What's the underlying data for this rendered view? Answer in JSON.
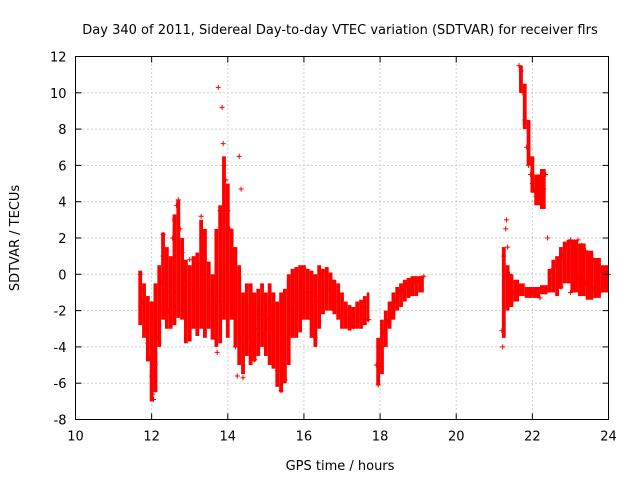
{
  "chart_data": {
    "type": "scatter",
    "title": "Day 340 of 2011, Sidereal Day-to-day VTEC variation (SDTVAR) for receiver flrs",
    "xlabel": "GPS time / hours",
    "ylabel": "SDTVAR / TECUs",
    "xlim": [
      10,
      24
    ],
    "ylim": [
      -8,
      12
    ],
    "xticks": [
      10,
      12,
      14,
      16,
      18,
      20,
      22,
      24
    ],
    "yticks": [
      -8,
      -6,
      -4,
      -2,
      0,
      2,
      4,
      6,
      8,
      10,
      12
    ],
    "grid": true,
    "marker": "+",
    "color": "#ff0000",
    "series": [
      {
        "name": "SDTVAR",
        "points": [
          [
            11.7,
            0.0
          ],
          [
            11.72,
            -0.8
          ],
          [
            11.75,
            -1.5
          ],
          [
            11.8,
            -2.6
          ],
          [
            11.85,
            -3.0
          ],
          [
            11.9,
            -3.8
          ],
          [
            11.95,
            -4.6
          ],
          [
            12.0,
            -5.6
          ],
          [
            12.02,
            -6.6
          ],
          [
            12.05,
            -6.9
          ],
          [
            12.08,
            -6.2
          ],
          [
            12.1,
            -5.0
          ],
          [
            12.15,
            -3.5
          ],
          [
            12.2,
            -2.2
          ],
          [
            12.25,
            -0.5
          ],
          [
            12.3,
            1.0
          ],
          [
            12.3,
            2.2
          ],
          [
            12.35,
            0.5
          ],
          [
            12.4,
            -1.0
          ],
          [
            12.45,
            -2.0
          ],
          [
            12.5,
            0.8
          ],
          [
            12.55,
            2.0
          ],
          [
            12.6,
            3.0
          ],
          [
            12.65,
            3.8
          ],
          [
            12.7,
            4.1
          ],
          [
            12.75,
            2.5
          ],
          [
            12.8,
            1.2
          ],
          [
            12.9,
            0.5
          ],
          [
            13.0,
            0.8
          ],
          [
            13.1,
            -0.5
          ],
          [
            13.2,
            0.6
          ],
          [
            13.3,
            3.2
          ],
          [
            13.35,
            2.2
          ],
          [
            13.4,
            0.0
          ],
          [
            13.5,
            -1.2
          ],
          [
            13.6,
            -2.8
          ],
          [
            13.7,
            -1.5
          ],
          [
            13.72,
            -4.3
          ],
          [
            13.75,
            10.3
          ],
          [
            13.8,
            3.5
          ],
          [
            13.85,
            9.2
          ],
          [
            13.88,
            7.2
          ],
          [
            13.9,
            6.0
          ],
          [
            13.95,
            5.2
          ],
          [
            14.0,
            3.5
          ],
          [
            14.05,
            2.5
          ],
          [
            14.1,
            1.0
          ],
          [
            14.15,
            -2.0
          ],
          [
            14.2,
            -4.0
          ],
          [
            14.25,
            -5.6
          ],
          [
            14.3,
            6.5
          ],
          [
            14.35,
            4.7
          ],
          [
            14.4,
            -5.7
          ],
          [
            14.5,
            -3.5
          ],
          [
            14.6,
            -4.2
          ],
          [
            14.7,
            -4.7
          ],
          [
            14.8,
            -3.0
          ],
          [
            14.9,
            -2.2
          ],
          [
            15.0,
            -2.5
          ],
          [
            15.1,
            -3.0
          ],
          [
            15.2,
            -3.5
          ],
          [
            15.3,
            -5.3
          ],
          [
            15.4,
            -6.4
          ],
          [
            15.5,
            -5.8
          ],
          [
            15.6,
            -3.5
          ],
          [
            15.7,
            -2.0
          ],
          [
            15.8,
            -0.5
          ],
          [
            15.9,
            0.2
          ],
          [
            16.0,
            0.3
          ],
          [
            16.1,
            -1.0
          ],
          [
            16.2,
            -2.5
          ],
          [
            16.3,
            -3.5
          ],
          [
            16.4,
            -1.5
          ],
          [
            16.5,
            0.0
          ],
          [
            16.6,
            -0.5
          ],
          [
            16.7,
            -0.8
          ],
          [
            16.8,
            -1.5
          ],
          [
            16.9,
            -1.2
          ],
          [
            17.0,
            -2.4
          ],
          [
            17.1,
            -2.8
          ],
          [
            17.2,
            -2.5
          ],
          [
            17.3,
            -2.9
          ],
          [
            17.4,
            -2.6
          ],
          [
            17.5,
            -2.5
          ],
          [
            17.6,
            -1.8
          ],
          [
            17.7,
            -2.5
          ],
          [
            17.9,
            -5.0
          ],
          [
            17.95,
            -6.1
          ],
          [
            18.0,
            -5.0
          ],
          [
            18.05,
            -4.0
          ],
          [
            18.1,
            -3.2
          ],
          [
            18.2,
            -2.6
          ],
          [
            18.3,
            -1.8
          ],
          [
            18.4,
            -1.5
          ],
          [
            18.5,
            -1.0
          ],
          [
            18.6,
            -0.9
          ],
          [
            18.7,
            -0.6
          ],
          [
            18.8,
            -0.5
          ],
          [
            18.9,
            -0.4
          ],
          [
            19.0,
            -0.3
          ],
          [
            19.1,
            -0.2
          ],
          [
            19.15,
            -0.1
          ],
          [
            21.2,
            -3.1
          ],
          [
            21.22,
            -4.0
          ],
          [
            21.25,
            1.0
          ],
          [
            21.3,
            2.5
          ],
          [
            21.32,
            3.0
          ],
          [
            21.35,
            1.5
          ],
          [
            21.4,
            0.0
          ],
          [
            21.5,
            -1.0
          ],
          [
            21.6,
            -0.8
          ],
          [
            21.65,
            11.5
          ],
          [
            21.7,
            11.2
          ],
          [
            21.75,
            10.0
          ],
          [
            21.8,
            8.5
          ],
          [
            21.85,
            7.0
          ],
          [
            21.9,
            6.0
          ],
          [
            21.95,
            5.5
          ],
          [
            22.0,
            5.0
          ],
          [
            22.05,
            4.6
          ],
          [
            22.1,
            4.3
          ],
          [
            22.15,
            4.2
          ],
          [
            22.2,
            4.3
          ],
          [
            22.3,
            4.7
          ],
          [
            22.35,
            5.5
          ],
          [
            22.4,
            2.0
          ],
          [
            22.45,
            -0.8
          ],
          [
            22.5,
            0.2
          ],
          [
            22.6,
            0.5
          ],
          [
            22.7,
            -0.5
          ],
          [
            22.75,
            -0.7
          ],
          [
            22.8,
            1.0
          ],
          [
            22.9,
            1.5
          ],
          [
            23.0,
            1.9
          ],
          [
            23.1,
            1.8
          ],
          [
            23.2,
            1.9
          ],
          [
            23.3,
            1.6
          ],
          [
            23.4,
            1.3
          ],
          [
            23.5,
            1.0
          ],
          [
            23.6,
            0.8
          ],
          [
            23.7,
            0.4
          ],
          [
            23.8,
            0.2
          ],
          [
            23.9,
            -0.5
          ],
          [
            24.0,
            0.0
          ],
          [
            23.0,
            -1.0
          ],
          [
            23.2,
            -0.2
          ],
          [
            23.4,
            -0.5
          ],
          [
            23.6,
            -0.8
          ],
          [
            23.8,
            -0.9
          ],
          [
            23.9,
            -0.6
          ],
          [
            22.0,
            -1.0
          ],
          [
            22.2,
            -1.3
          ]
        ],
        "bands": [
          [
            11.65,
            11.75,
            -2.8,
            0.2
          ],
          [
            11.75,
            11.85,
            -3.5,
            -0.5
          ],
          [
            11.85,
            11.95,
            -4.8,
            -1.2
          ],
          [
            11.95,
            12.05,
            -7.0,
            -1.5
          ],
          [
            12.05,
            12.15,
            -6.5,
            -0.5
          ],
          [
            12.15,
            12.25,
            -4.0,
            0.5
          ],
          [
            12.25,
            12.35,
            -2.5,
            2.3
          ],
          [
            12.35,
            12.45,
            -3.0,
            1.5
          ],
          [
            12.45,
            12.55,
            -3.0,
            1.0
          ],
          [
            12.55,
            12.65,
            -2.8,
            3.3
          ],
          [
            12.65,
            12.75,
            -2.4,
            4.1
          ],
          [
            12.75,
            12.85,
            -2.5,
            2.0
          ],
          [
            12.85,
            12.95,
            -3.8,
            0.8
          ],
          [
            12.95,
            13.05,
            -3.7,
            0.5
          ],
          [
            13.05,
            13.15,
            -3.0,
            1.0
          ],
          [
            13.15,
            13.25,
            -3.4,
            1.2
          ],
          [
            13.25,
            13.35,
            -3.0,
            3.0
          ],
          [
            13.35,
            13.45,
            -3.5,
            2.5
          ],
          [
            13.45,
            13.55,
            -3.0,
            0.7
          ],
          [
            13.55,
            13.65,
            -3.6,
            0.0
          ],
          [
            13.65,
            13.75,
            -4.0,
            2.5
          ],
          [
            13.75,
            13.85,
            -3.8,
            3.8
          ],
          [
            13.85,
            13.95,
            -2.5,
            6.5
          ],
          [
            13.95,
            14.05,
            -3.5,
            5.0
          ],
          [
            14.05,
            14.15,
            -2.5,
            2.5
          ],
          [
            14.15,
            14.25,
            -4.0,
            1.5
          ],
          [
            14.25,
            14.35,
            -5.0,
            0.5
          ],
          [
            14.35,
            14.45,
            -5.5,
            -1.0
          ],
          [
            14.45,
            14.55,
            -4.5,
            -0.5
          ],
          [
            14.55,
            14.65,
            -5.0,
            -0.5
          ],
          [
            14.65,
            14.75,
            -4.8,
            -1.0
          ],
          [
            14.75,
            14.85,
            -4.5,
            -0.8
          ],
          [
            14.85,
            14.95,
            -4.0,
            -0.5
          ],
          [
            14.95,
            15.05,
            -4.5,
            -1.0
          ],
          [
            15.05,
            15.15,
            -5.0,
            -0.5
          ],
          [
            15.15,
            15.25,
            -5.2,
            -1.0
          ],
          [
            15.25,
            15.35,
            -6.2,
            -1.5
          ],
          [
            15.35,
            15.45,
            -6.5,
            -1.0
          ],
          [
            15.45,
            15.55,
            -6.0,
            -0.8
          ],
          [
            15.55,
            15.65,
            -5.0,
            0.0
          ],
          [
            15.65,
            15.75,
            -3.5,
            0.3
          ],
          [
            15.75,
            15.85,
            -3.5,
            0.4
          ],
          [
            15.85,
            15.95,
            -3.2,
            0.5
          ],
          [
            15.95,
            16.05,
            -2.5,
            0.5
          ],
          [
            16.05,
            16.15,
            -2.5,
            0.3
          ],
          [
            16.15,
            16.25,
            -3.5,
            0.2
          ],
          [
            16.25,
            16.35,
            -4.0,
            0.0
          ],
          [
            16.35,
            16.45,
            -3.0,
            0.5
          ],
          [
            16.45,
            16.55,
            -2.2,
            0.3
          ],
          [
            16.55,
            16.65,
            -2.0,
            0.4
          ],
          [
            16.65,
            16.75,
            -2.0,
            0.1
          ],
          [
            16.75,
            16.85,
            -2.2,
            -0.3
          ],
          [
            16.85,
            16.95,
            -2.5,
            -0.5
          ],
          [
            16.95,
            17.05,
            -3.0,
            -1.0
          ],
          [
            17.05,
            17.15,
            -3.0,
            -1.5
          ],
          [
            17.15,
            17.25,
            -3.1,
            -1.7
          ],
          [
            17.25,
            17.35,
            -3.0,
            -1.8
          ],
          [
            17.35,
            17.45,
            -3.0,
            -1.5
          ],
          [
            17.45,
            17.55,
            -3.0,
            -1.4
          ],
          [
            17.55,
            17.65,
            -2.8,
            -1.2
          ],
          [
            17.65,
            17.72,
            -2.6,
            -1.0
          ],
          [
            17.9,
            18.0,
            -6.1,
            -3.5
          ],
          [
            18.0,
            18.1,
            -5.5,
            -2.5
          ],
          [
            18.1,
            18.2,
            -4.0,
            -2.0
          ],
          [
            18.2,
            18.3,
            -3.0,
            -1.5
          ],
          [
            18.3,
            18.4,
            -2.5,
            -1.0
          ],
          [
            18.4,
            18.5,
            -2.0,
            -0.7
          ],
          [
            18.5,
            18.6,
            -1.8,
            -0.5
          ],
          [
            18.6,
            18.7,
            -1.5,
            -0.3
          ],
          [
            18.7,
            18.8,
            -1.3,
            -0.2
          ],
          [
            18.8,
            18.9,
            -1.2,
            -0.1
          ],
          [
            18.9,
            19.0,
            -1.2,
            -0.1
          ],
          [
            19.0,
            19.15,
            -1.0,
            -0.1
          ],
          [
            21.2,
            21.3,
            -3.5,
            1.5
          ],
          [
            21.3,
            21.4,
            -2.0,
            0.5
          ],
          [
            21.4,
            21.5,
            -1.8,
            0.0
          ],
          [
            21.5,
            21.65,
            -1.5,
            -0.3
          ],
          [
            21.65,
            21.8,
            -1.2,
            -0.5
          ],
          [
            21.8,
            22.0,
            -1.3,
            -0.7
          ],
          [
            22.0,
            22.2,
            -1.3,
            -0.7
          ],
          [
            22.2,
            22.4,
            -1.1,
            -0.6
          ],
          [
            21.65,
            21.75,
            10.0,
            11.5
          ],
          [
            21.75,
            21.85,
            8.0,
            10.5
          ],
          [
            21.85,
            21.95,
            6.0,
            8.5
          ],
          [
            21.95,
            22.05,
            4.5,
            6.5
          ],
          [
            22.05,
            22.2,
            3.8,
            5.5
          ],
          [
            22.2,
            22.35,
            3.6,
            5.8
          ],
          [
            22.4,
            22.5,
            -1.0,
            0.3
          ],
          [
            22.5,
            22.6,
            -1.0,
            0.8
          ],
          [
            22.6,
            22.7,
            -1.2,
            1.0
          ],
          [
            22.7,
            22.8,
            -0.8,
            1.5
          ],
          [
            22.8,
            22.9,
            -0.5,
            1.8
          ],
          [
            22.9,
            23.0,
            -0.5,
            1.9
          ],
          [
            23.0,
            23.2,
            -1.0,
            1.9
          ],
          [
            23.2,
            23.4,
            -1.2,
            1.7
          ],
          [
            23.4,
            23.6,
            -1.4,
            1.3
          ],
          [
            23.6,
            23.8,
            -1.3,
            0.9
          ],
          [
            23.8,
            24.0,
            -1.0,
            0.5
          ]
        ]
      }
    ]
  }
}
